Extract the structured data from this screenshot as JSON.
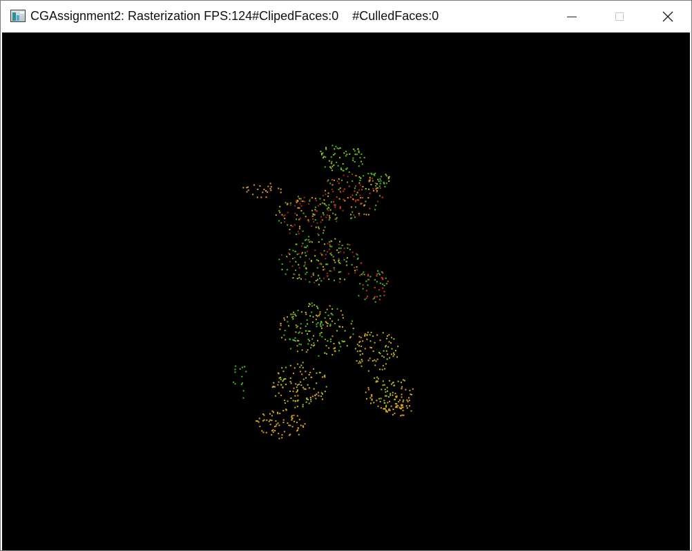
{
  "window": {
    "title": "CGAssignment2: Rasterization FPS:124#ClipedFaces:0    #CulledFaces:0",
    "app_icon": "app-window-icon",
    "controls": {
      "minimize_icon": "minimize-icon",
      "maximize_icon": "maximize-icon",
      "close_icon": "close-icon"
    }
  },
  "render": {
    "background": "#000000",
    "colors": {
      "green": "#3fbf1f",
      "yellow_green": "#9fc81e",
      "orange": "#e0a022",
      "red": "#d83a16",
      "dark_red": "#a82810"
    }
  }
}
